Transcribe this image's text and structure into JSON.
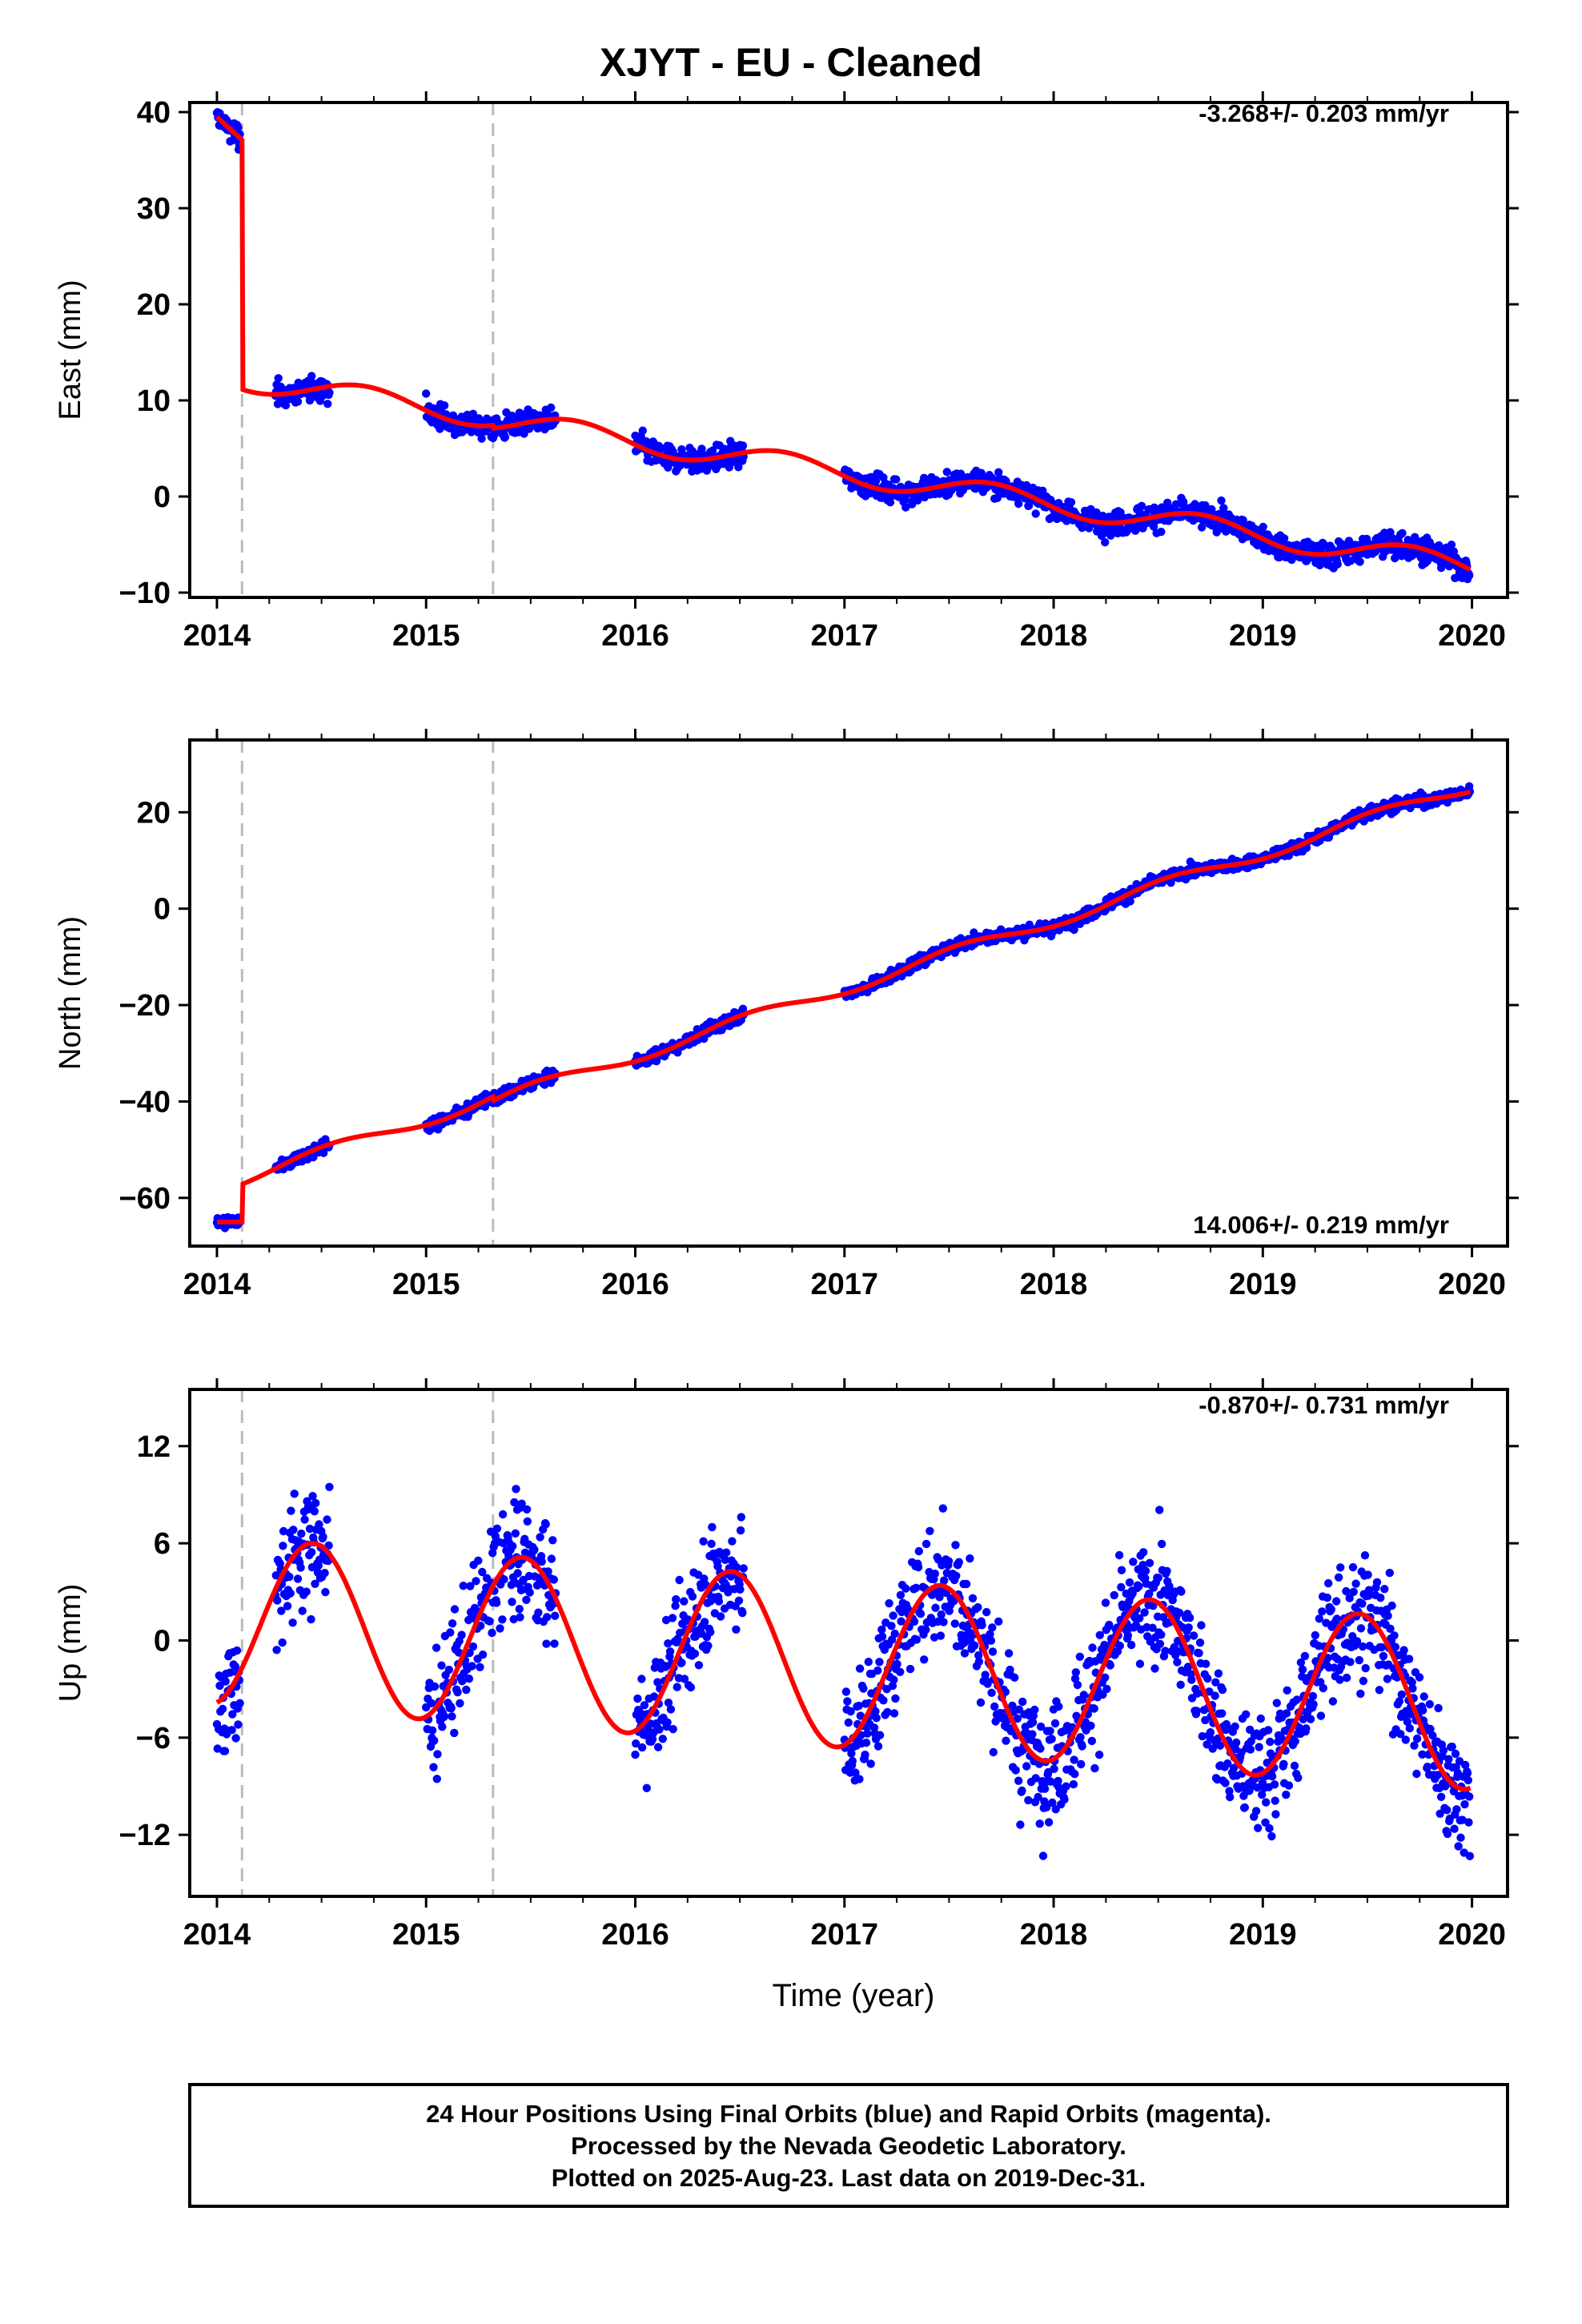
{
  "title": "XJYT  - EU - Cleaned",
  "x_axis_label": "Time (year)",
  "footer": {
    "line1": "24 Hour Positions Using Final Orbits (blue) and Rapid Orbits (magenta).",
    "line2": "Processed by the Nevada Geodetic Laboratory.",
    "line3": "Plotted on 2025-Aug-23. Last data on 2019-Dec-31."
  },
  "colors": {
    "data_points": "#0000ff",
    "model_curve": "#ff0000",
    "event_lines": "#bbbbbb",
    "frame": "#000000"
  },
  "chart_data": [
    {
      "type": "scatter",
      "ylabel": "East (mm)",
      "rate_text": "-3.268+/- 0.203 mm/yr",
      "xlim": [
        2013.87,
        2020.17
      ],
      "ylim": [
        -10.5,
        41
      ],
      "x_ticks": [
        2014,
        2015,
        2016,
        2017,
        2018,
        2019,
        2020
      ],
      "y_ticks": [
        -10,
        0,
        10,
        20,
        30,
        40
      ],
      "event_lines_x": [
        2014.12,
        2015.32
      ],
      "data_segments": [
        [
          2014.0,
          2014.11
        ],
        [
          2014.28,
          2014.54
        ],
        [
          2015.0,
          2015.62
        ],
        [
          2016.0,
          2016.52
        ],
        [
          2017.0,
          2019.99
        ]
      ],
      "model": {
        "start": 2014.0,
        "offsets": [
          {
            "x": 2014.12,
            "value": 13.0
          },
          {
            "x": 2015.32,
            "value": 8.6
          }
        ],
        "start_value": 39.5,
        "pre_offset_end": 37.2,
        "rate": -3.268,
        "seasonal_amp": 1.2
      },
      "series": [
        {
          "name": "24 hour positions",
          "color": "#0000ff"
        },
        {
          "name": "model fit",
          "color": "#ff0000"
        }
      ]
    },
    {
      "type": "scatter",
      "ylabel": "North (mm)",
      "rate_text": "14.006+/- 0.219 mm/yr",
      "xlim": [
        2013.87,
        2020.17
      ],
      "ylim": [
        -70,
        35
      ],
      "x_ticks": [
        2014,
        2015,
        2016,
        2017,
        2018,
        2019,
        2020
      ],
      "y_ticks": [
        -60,
        -40,
        -20,
        0,
        20
      ],
      "event_lines_x": [
        2014.12,
        2015.32
      ],
      "data_segments": [
        [
          2014.0,
          2014.11
        ],
        [
          2014.28,
          2014.54
        ],
        [
          2015.0,
          2015.62
        ],
        [
          2016.0,
          2016.52
        ],
        [
          2017.0,
          2019.99
        ]
      ],
      "model": {
        "start_value": -65.0,
        "after_first_offset": -55.0,
        "rate": 14.006,
        "seasonal_amp": 1.3
      },
      "series": [
        {
          "name": "24 hour positions",
          "color": "#0000ff"
        },
        {
          "name": "model fit",
          "color": "#ff0000"
        }
      ]
    },
    {
      "type": "scatter",
      "ylabel": "Up (mm)",
      "rate_text": "-0.870+/- 0.731 mm/yr",
      "xlim": [
        2013.87,
        2020.17
      ],
      "ylim": [
        -15.8,
        15.5
      ],
      "x_ticks": [
        2014,
        2015,
        2016,
        2017,
        2018,
        2019,
        2020
      ],
      "y_ticks": [
        -12,
        -6,
        0,
        6,
        12
      ],
      "event_lines_x": [
        2014.12,
        2015.32
      ],
      "data_segments": [
        [
          2014.0,
          2014.11
        ],
        [
          2014.28,
          2014.54
        ],
        [
          2015.0,
          2015.62
        ],
        [
          2016.0,
          2016.52
        ],
        [
          2017.0,
          2019.99
        ]
      ],
      "model": {
        "mean": 1.2,
        "rate": -0.87,
        "seasonal_amp": 5.2,
        "peak_phase": 0.46
      },
      "series": [
        {
          "name": "24 hour positions",
          "color": "#0000ff"
        },
        {
          "name": "model fit",
          "color": "#ff0000"
        }
      ]
    }
  ]
}
